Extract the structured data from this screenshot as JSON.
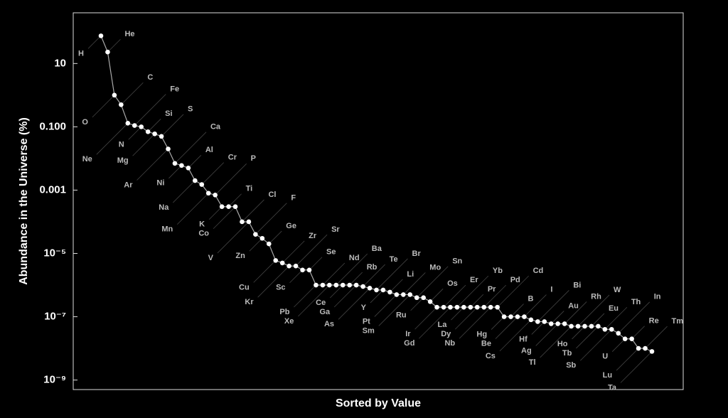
{
  "chart_data": {
    "type": "line",
    "x_label": "Sorted by Value",
    "y_label": "Abundance in the Universe (%)",
    "log_scale": "y",
    "ylim": [
      5e-10,
      400
    ],
    "yticks": [
      10,
      {
        "value": 0.1,
        "label": "0.100"
      },
      0.001,
      {
        "value": 1e-05,
        "label": "10⁻⁵"
      },
      {
        "value": 1e-07,
        "label": "10⁻⁷"
      },
      {
        "value": 1e-09,
        "label": "10⁻⁹"
      }
    ],
    "color": "#ffffff",
    "line_color": "#aaaaaa",
    "categories": [
      "H",
      "He",
      "O",
      "C",
      "Ne",
      "Fe",
      "N",
      "Si",
      "Mg",
      "S",
      "Ar",
      "Ca",
      "Ni",
      "Al",
      "Na",
      "Cr",
      "Mn",
      "P",
      "K",
      "Ti",
      "Co",
      "Cl",
      "V",
      "F",
      "Zn",
      "Ge",
      "Cu",
      "Zr",
      "Kr",
      "Sr",
      "Sc",
      "Se",
      "Pb",
      "Nd",
      "Xe",
      "Ba",
      "Ce",
      "Rb",
      "Ga",
      "Te",
      "As",
      "Br",
      "Y",
      "Li",
      "Pt",
      "Mo",
      "Sm",
      "Sn",
      "Ru",
      "Os",
      "Ir",
      "Er",
      "Gd",
      "Yb",
      "La",
      "Pr",
      "Dy",
      "Pd",
      "Nb",
      "Cd",
      "Hg",
      "B",
      "Be",
      "I",
      "Cs",
      "Bi",
      "Hf",
      "Au",
      "Ag",
      "Rh",
      "Tl",
      "W",
      "Ho",
      "Eu",
      "Tb",
      "Th",
      "Sb",
      "In",
      "U",
      "Re",
      "Lu",
      "Tm",
      "Ta"
    ],
    "values": [
      75,
      23,
      1,
      0.5,
      0.13,
      0.11,
      0.1,
      0.07,
      0.06,
      0.05,
      0.02,
      0.007,
      0.006,
      0.005,
      0.002,
      0.0015,
      0.0008,
      0.0007,
      0.0003,
      0.0003,
      0.0003,
      0.0001,
      0.0001,
      4e-05,
      3e-05,
      2e-05,
      6e-06,
      5e-06,
      4e-06,
      4e-06,
      3e-06,
      3e-06,
      1e-06,
      1e-06,
      1e-06,
      1e-06,
      1e-06,
      1e-06,
      1e-06,
      9e-07,
      8e-07,
      7e-07,
      7e-07,
      6e-07,
      5e-07,
      5e-07,
      5e-07,
      4e-07,
      4e-07,
      3e-07,
      2e-07,
      2e-07,
      2e-07,
      2e-07,
      2e-07,
      2e-07,
      2e-07,
      2e-07,
      2e-07,
      2e-07,
      1e-07,
      1e-07,
      1e-07,
      1e-07,
      8e-08,
      7e-08,
      7e-08,
      6e-08,
      6e-08,
      6e-08,
      5e-08,
      5e-08,
      5e-08,
      5e-08,
      5e-08,
      4e-08,
      4e-08,
      3e-08,
      2e-08,
      2e-08,
      1e-08,
      1e-08,
      8e-09
    ]
  }
}
